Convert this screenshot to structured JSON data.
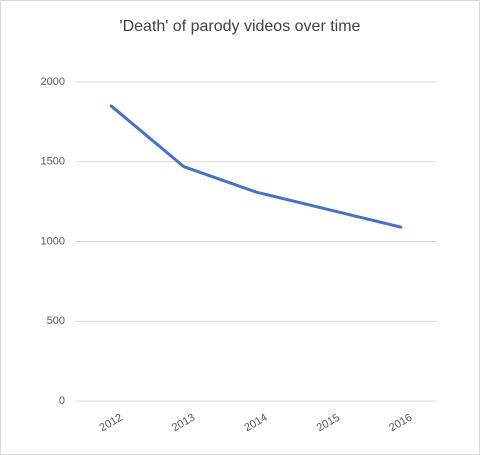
{
  "chart_data": {
    "type": "line",
    "title": "'Death' of parody videos over time",
    "categories": [
      "2012",
      "2013",
      "2014",
      "2015",
      "2016"
    ],
    "values": [
      1850,
      1470,
      1310,
      1200,
      1090
    ],
    "color": "#4472c4",
    "ylim": [
      0,
      2000
    ],
    "yticks": [
      0,
      500,
      1000,
      1500,
      2000
    ],
    "grid": true
  }
}
